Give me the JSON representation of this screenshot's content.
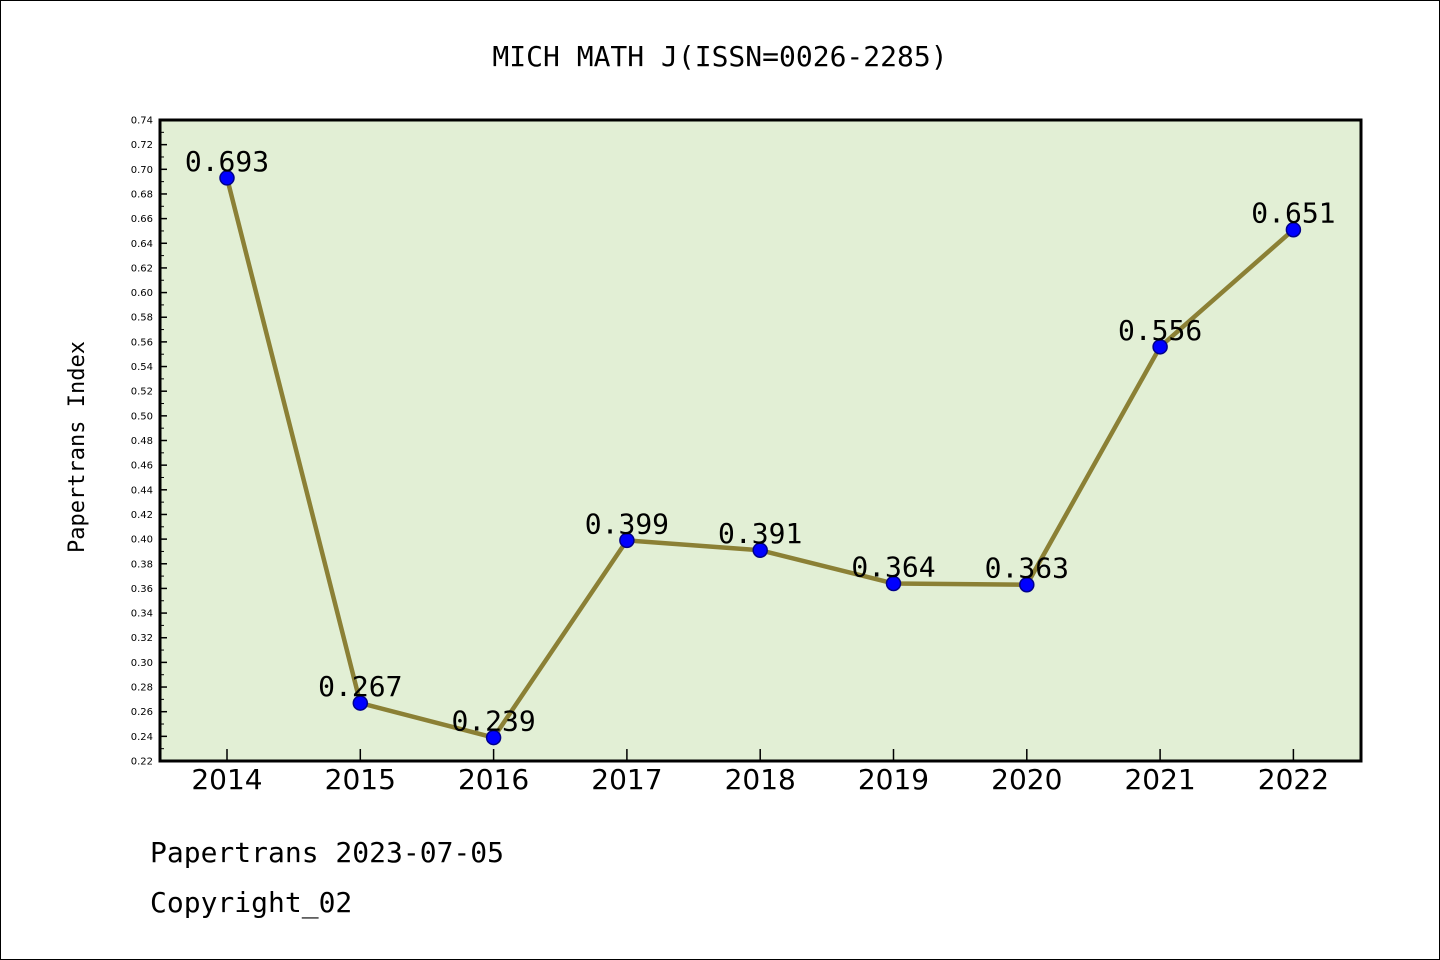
{
  "chart_data": {
    "type": "line",
    "title": "MICH MATH J(ISSN=0026-2285)",
    "ylabel": "Papertrans Index",
    "xlabel": "",
    "categories": [
      "2014",
      "2015",
      "2016",
      "2017",
      "2018",
      "2019",
      "2020",
      "2021",
      "2022"
    ],
    "series": [
      {
        "values": [
          0.693,
          0.267,
          0.239,
          0.399,
          0.391,
          0.364,
          0.363,
          0.556,
          0.651
        ]
      }
    ],
    "data_labels": [
      "0.693",
      "0.267",
      "0.239",
      "0.399",
      "0.391",
      "0.364",
      "0.363",
      "0.556",
      "0.651"
    ],
    "ylim": [
      0.22,
      0.74
    ],
    "yticks": [
      "0.22",
      "0.24",
      "0.26",
      "0.28",
      "0.30",
      "0.32",
      "0.34",
      "0.36",
      "0.38",
      "0.40",
      "0.42",
      "0.44",
      "0.46",
      "0.48",
      "0.50",
      "0.52",
      "0.54",
      "0.56",
      "0.58",
      "0.60",
      "0.62",
      "0.64",
      "0.66",
      "0.68",
      "0.70",
      "0.72",
      "0.74"
    ],
    "grid": false,
    "colors": {
      "plot_background": "#e2efd5",
      "line": "#8b8035",
      "marker_fill": "#0000ff",
      "marker_edge": "#00008b"
    }
  },
  "footer": {
    "date_text": "Papertrans 2023-07-05",
    "copyright_text": "Copyright_02"
  }
}
